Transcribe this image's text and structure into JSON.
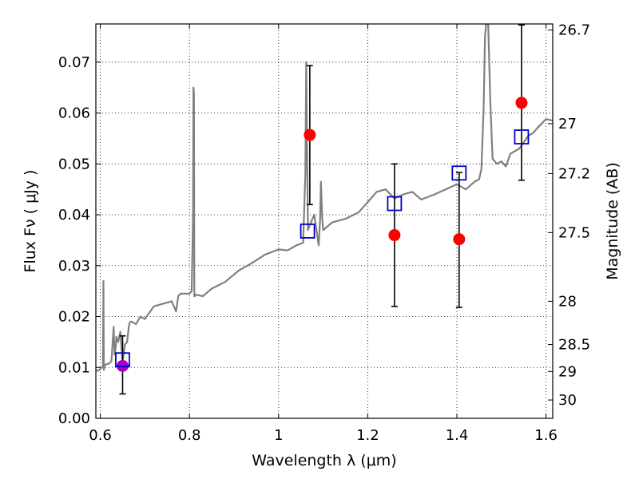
{
  "chart_data": {
    "type": "scatter",
    "xlabel": "Wavelength  λ (μm)",
    "ylabel": "Flux  Fν  ( μJy )",
    "ylabel_right": "Magnitude (AB)",
    "xlim": [
      0.59,
      1.615
    ],
    "ylim": [
      0.0,
      0.0775
    ],
    "x_ticks": [
      0.6,
      0.8,
      1.0,
      1.2,
      1.4,
      1.6
    ],
    "x_tick_labels": [
      "0.6",
      "0.8",
      "1",
      "1.2",
      "1.4",
      "1.6"
    ],
    "y_ticks": [
      0.0,
      0.01,
      0.02,
      0.03,
      0.04,
      0.05,
      0.06,
      0.07
    ],
    "y_tick_labels": [
      "0.00",
      "0.01",
      "0.02",
      "0.03",
      "0.04",
      "0.05",
      "0.06",
      "0.07"
    ],
    "right_ticks": [
      {
        "label": "26.7",
        "flux": 0.0763
      },
      {
        "label": "27",
        "flux": 0.0579
      },
      {
        "label": "27.2",
        "flux": 0.0481
      },
      {
        "label": "27.5",
        "flux": 0.0365
      },
      {
        "label": "28",
        "flux": 0.023
      },
      {
        "label": "28.5",
        "flux": 0.0145
      },
      {
        "label": "29",
        "flux": 0.0092
      },
      {
        "label": "30",
        "flux": 0.0036
      }
    ],
    "grid": true,
    "colors": {
      "spectrum": "#808080",
      "observed": "#ff0000",
      "observed_first": "#a000c8",
      "model": "#0000cc",
      "errorbar": "#000000"
    },
    "observed_points": [
      {
        "x": 0.65,
        "y": 0.0103,
        "err_low": 0.0048,
        "err_high": 0.0162
      },
      {
        "x": 1.07,
        "y": 0.0557,
        "err_low": 0.042,
        "err_high": 0.0693
      },
      {
        "x": 1.26,
        "y": 0.036,
        "err_low": 0.022,
        "err_high": 0.05
      },
      {
        "x": 1.405,
        "y": 0.0352,
        "err_low": 0.0218,
        "err_high": 0.0483
      },
      {
        "x": 1.545,
        "y": 0.062,
        "err_low": 0.0468,
        "err_high": 0.0773
      }
    ],
    "model_points": [
      {
        "x": 0.65,
        "y": 0.0115
      },
      {
        "x": 1.065,
        "y": 0.0368
      },
      {
        "x": 1.26,
        "y": 0.0422
      },
      {
        "x": 1.405,
        "y": 0.0482
      },
      {
        "x": 1.545,
        "y": 0.0553
      }
    ],
    "spectrum": {
      "x": [
        0.59,
        0.598,
        0.603,
        0.606,
        0.607,
        0.608,
        0.609,
        0.61,
        0.62,
        0.625,
        0.63,
        0.632,
        0.634,
        0.636,
        0.64,
        0.645,
        0.65,
        0.655,
        0.66,
        0.664,
        0.666,
        0.668,
        0.67,
        0.68,
        0.69,
        0.7,
        0.72,
        0.74,
        0.76,
        0.77,
        0.775,
        0.78,
        0.8,
        0.805,
        0.808,
        0.809,
        0.81,
        0.811,
        0.812,
        0.815,
        0.83,
        0.85,
        0.88,
        0.91,
        0.94,
        0.97,
        1.0,
        1.02,
        1.04,
        1.055,
        1.06,
        1.062,
        1.064,
        1.066,
        1.068,
        1.07,
        1.08,
        1.085,
        1.09,
        1.093,
        1.095,
        1.098,
        1.1,
        1.12,
        1.15,
        1.18,
        1.2,
        1.22,
        1.24,
        1.26,
        1.28,
        1.3,
        1.32,
        1.35,
        1.38,
        1.4,
        1.42,
        1.44,
        1.45,
        1.455,
        1.46,
        1.463,
        1.466,
        1.47,
        1.475,
        1.48,
        1.49,
        1.5,
        1.51,
        1.52,
        1.54,
        1.56,
        1.57,
        1.58,
        1.6,
        1.615
      ],
      "y": [
        0.0093,
        0.0095,
        0.01,
        0.01,
        0.027,
        0.0095,
        0.01,
        0.0105,
        0.0108,
        0.0112,
        0.018,
        0.0125,
        0.0135,
        0.016,
        0.015,
        0.017,
        0.011,
        0.0145,
        0.015,
        0.018,
        0.0188,
        0.019,
        0.019,
        0.0185,
        0.02,
        0.0195,
        0.022,
        0.0225,
        0.023,
        0.021,
        0.024,
        0.0245,
        0.0245,
        0.025,
        0.04,
        0.065,
        0.064,
        0.024,
        0.024,
        0.0243,
        0.024,
        0.0255,
        0.0268,
        0.029,
        0.0305,
        0.0322,
        0.0332,
        0.033,
        0.034,
        0.0345,
        0.048,
        0.07,
        0.052,
        0.037,
        0.0375,
        0.038,
        0.04,
        0.037,
        0.034,
        0.039,
        0.0465,
        0.039,
        0.037,
        0.0385,
        0.0392,
        0.0405,
        0.0425,
        0.0445,
        0.045,
        0.0432,
        0.044,
        0.0445,
        0.043,
        0.044,
        0.0452,
        0.046,
        0.045,
        0.0465,
        0.047,
        0.049,
        0.061,
        0.075,
        0.078,
        0.078,
        0.062,
        0.051,
        0.05,
        0.0505,
        0.0495,
        0.052,
        0.053,
        0.0555,
        0.056,
        0.057,
        0.0588,
        0.0585
      ]
    }
  }
}
